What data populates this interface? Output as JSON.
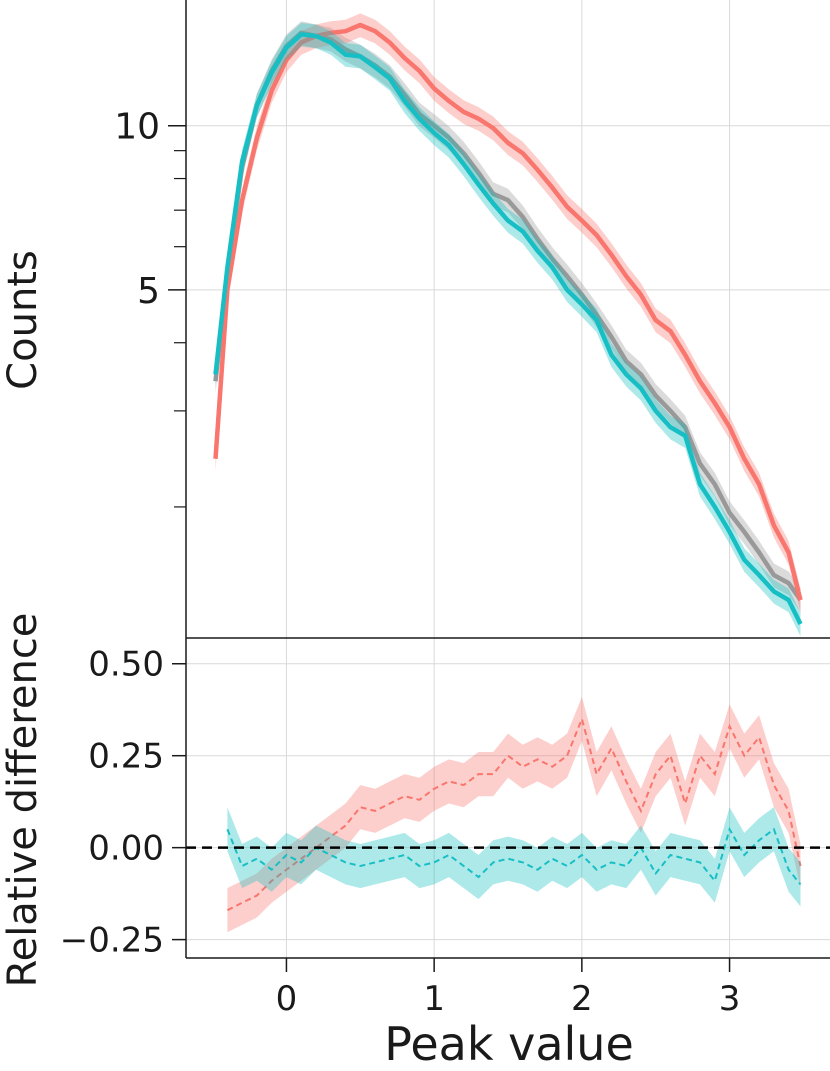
{
  "figure": {
    "xlabel": "Peak value"
  },
  "chart_data": [
    {
      "type": "line",
      "panel": "top",
      "ylabel": "Counts",
      "xlabel": "Peak value",
      "yscale": "log",
      "ylim": [
        1.15,
        17.0
      ],
      "xlim": [
        -0.68,
        3.68
      ],
      "grid": true,
      "major_yticks": [
        5,
        10
      ],
      "major_ytick_labels": [
        "5",
        "10"
      ],
      "minor_yticks": [
        2,
        3,
        4,
        6,
        7,
        8,
        9
      ],
      "xticks": [
        0,
        1,
        2,
        3
      ],
      "colors": {
        "red": "#f8766d",
        "cyan": "#17bfc4",
        "gray": "#999999"
      },
      "series": [
        {
          "color": "#999999",
          "x": [
            -0.48,
            -0.4,
            -0.3,
            -0.2,
            -0.1,
            0.0,
            0.1,
            0.2,
            0.3,
            0.4,
            0.5,
            0.6,
            0.7,
            0.8,
            0.9,
            1.0,
            1.1,
            1.2,
            1.3,
            1.4,
            1.5,
            1.6,
            1.7,
            1.8,
            1.9,
            2.0,
            2.1,
            2.2,
            2.3,
            2.4,
            2.5,
            2.6,
            2.7,
            2.8,
            2.9,
            3.0,
            3.1,
            3.2,
            3.3,
            3.4,
            3.48
          ],
          "y": [
            3.4,
            5.4,
            8.4,
            10.9,
            12.6,
            14.0,
            14.8,
            14.6,
            14.4,
            13.8,
            13.4,
            12.9,
            12.3,
            11.4,
            10.5,
            10.0,
            9.5,
            8.9,
            8.2,
            7.5,
            7.3,
            6.8,
            6.2,
            5.7,
            5.3,
            4.9,
            4.5,
            4.1,
            3.7,
            3.5,
            3.2,
            3.0,
            2.8,
            2.4,
            2.2,
            1.95,
            1.8,
            1.65,
            1.5,
            1.45,
            1.35
          ]
        },
        {
          "color": "#f8766d",
          "x": [
            -0.48,
            -0.4,
            -0.3,
            -0.2,
            -0.1,
            0.0,
            0.1,
            0.2,
            0.3,
            0.4,
            0.5,
            0.6,
            0.7,
            0.8,
            0.9,
            1.0,
            1.1,
            1.2,
            1.3,
            1.4,
            1.5,
            1.6,
            1.7,
            1.8,
            1.9,
            2.0,
            2.1,
            2.2,
            2.3,
            2.4,
            2.5,
            2.6,
            2.7,
            2.8,
            2.9,
            3.0,
            3.1,
            3.2,
            3.3,
            3.4,
            3.48
          ],
          "y": [
            2.45,
            5.0,
            7.3,
            9.5,
            11.6,
            13.2,
            14.2,
            14.6,
            14.8,
            14.9,
            15.3,
            14.9,
            14.2,
            13.3,
            12.6,
            11.7,
            11.1,
            10.6,
            10.3,
            9.9,
            9.3,
            8.9,
            8.3,
            7.7,
            7.1,
            6.7,
            6.3,
            5.8,
            5.3,
            4.9,
            4.4,
            4.2,
            3.8,
            3.4,
            3.1,
            2.8,
            2.45,
            2.2,
            1.85,
            1.65,
            1.35
          ]
        },
        {
          "color": "#17bfc4",
          "x": [
            -0.48,
            -0.4,
            -0.3,
            -0.2,
            -0.1,
            0.0,
            0.1,
            0.2,
            0.3,
            0.4,
            0.5,
            0.6,
            0.7,
            0.8,
            0.9,
            1.0,
            1.1,
            1.2,
            1.3,
            1.4,
            1.5,
            1.6,
            1.7,
            1.8,
            1.9,
            2.0,
            2.1,
            2.2,
            2.3,
            2.4,
            2.5,
            2.6,
            2.7,
            2.8,
            2.9,
            3.0,
            3.1,
            3.2,
            3.3,
            3.4,
            3.48
          ],
          "y": [
            3.5,
            5.5,
            8.6,
            10.9,
            12.5,
            13.9,
            14.7,
            14.6,
            14.2,
            13.5,
            13.4,
            12.8,
            12.2,
            11.1,
            10.3,
            9.7,
            9.2,
            8.5,
            7.8,
            7.2,
            6.7,
            6.4,
            5.9,
            5.5,
            5.0,
            4.7,
            4.4,
            3.8,
            3.5,
            3.3,
            3.0,
            2.8,
            2.7,
            2.2,
            2.0,
            1.8,
            1.6,
            1.5,
            1.4,
            1.35,
            1.22
          ]
        }
      ]
    },
    {
      "type": "line",
      "panel": "bottom",
      "ylabel": "Relative difference",
      "xlabel": "Peak value",
      "ylim": [
        -0.3,
        0.57
      ],
      "xlim": [
        -0.68,
        3.68
      ],
      "grid": true,
      "yticks": [
        -0.25,
        0.0,
        0.25,
        0.5
      ],
      "ytick_labels": [
        "−0.25",
        "0.00",
        "0.25",
        "0.50"
      ],
      "xticks": [
        0,
        1,
        2,
        3
      ],
      "xtick_labels": [
        "0",
        "1",
        "2",
        "3"
      ],
      "reference_line": 0.0,
      "series": [
        {
          "color": "#f8766d",
          "x": [
            -0.4,
            -0.3,
            -0.2,
            -0.1,
            0.0,
            0.1,
            0.2,
            0.3,
            0.4,
            0.5,
            0.6,
            0.7,
            0.8,
            0.9,
            1.0,
            1.1,
            1.2,
            1.3,
            1.4,
            1.5,
            1.6,
            1.7,
            1.8,
            1.9,
            2.0,
            2.1,
            2.2,
            2.3,
            2.4,
            2.5,
            2.6,
            2.7,
            2.8,
            2.9,
            3.0,
            3.1,
            3.2,
            3.3,
            3.4,
            3.48
          ],
          "y": [
            -0.17,
            -0.15,
            -0.13,
            -0.09,
            -0.06,
            -0.03,
            0.0,
            0.03,
            0.06,
            0.11,
            0.1,
            0.12,
            0.14,
            0.13,
            0.16,
            0.18,
            0.17,
            0.2,
            0.2,
            0.25,
            0.22,
            0.24,
            0.22,
            0.25,
            0.35,
            0.2,
            0.27,
            0.18,
            0.1,
            0.2,
            0.25,
            0.12,
            0.25,
            0.2,
            0.33,
            0.25,
            0.3,
            0.17,
            0.1,
            -0.05
          ]
        },
        {
          "color": "#17bfc4",
          "x": [
            -0.4,
            -0.3,
            -0.2,
            -0.1,
            0.0,
            0.1,
            0.2,
            0.3,
            0.4,
            0.5,
            0.6,
            0.7,
            0.8,
            0.9,
            1.0,
            1.1,
            1.2,
            1.3,
            1.4,
            1.5,
            1.6,
            1.7,
            1.8,
            1.9,
            2.0,
            2.1,
            2.2,
            2.3,
            2.4,
            2.5,
            2.6,
            2.7,
            2.8,
            2.9,
            3.0,
            3.1,
            3.2,
            3.3,
            3.4,
            3.48
          ],
          "y": [
            0.05,
            -0.05,
            -0.03,
            -0.06,
            -0.02,
            -0.04,
            0.0,
            -0.02,
            -0.04,
            -0.05,
            -0.04,
            -0.03,
            -0.02,
            -0.05,
            -0.04,
            -0.02,
            -0.05,
            -0.08,
            -0.04,
            -0.03,
            -0.04,
            -0.06,
            -0.03,
            -0.05,
            -0.02,
            -0.06,
            -0.04,
            -0.05,
            0.0,
            -0.07,
            -0.02,
            -0.03,
            -0.04,
            -0.09,
            0.05,
            -0.02,
            0.02,
            0.05,
            -0.06,
            -0.1
          ]
        }
      ]
    }
  ]
}
